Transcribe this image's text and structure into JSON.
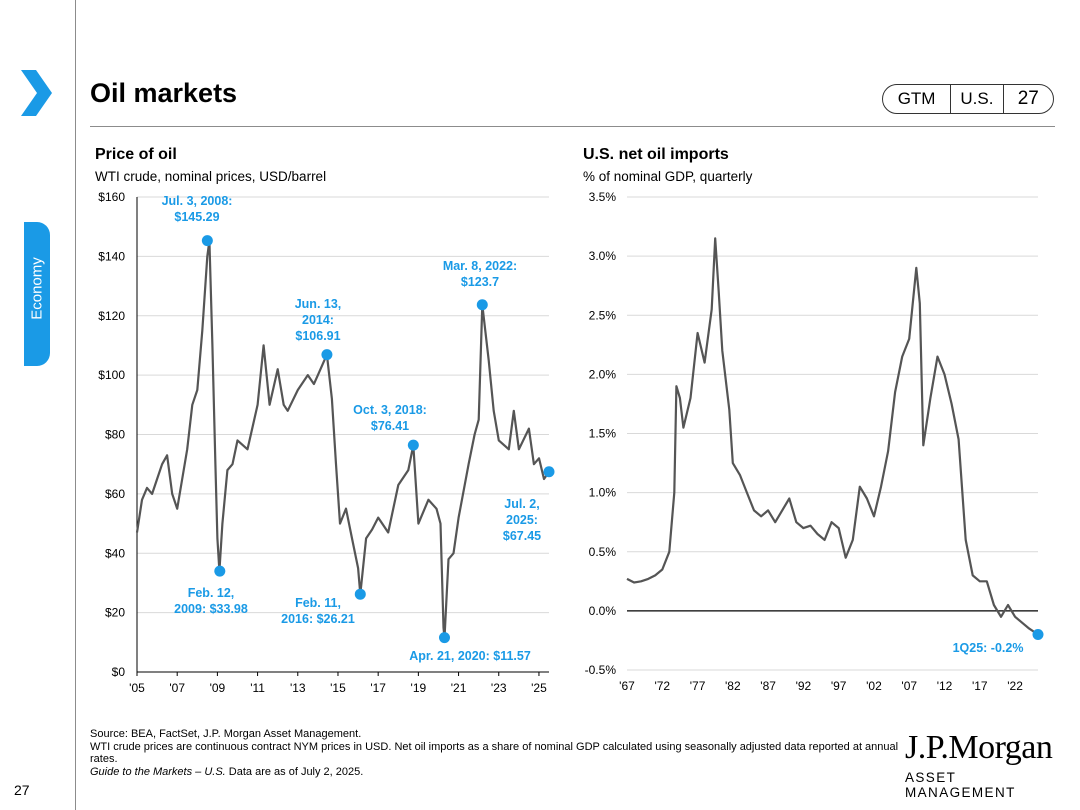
{
  "header": {
    "title": "Oil markets",
    "badge": [
      "GTM",
      "U.S.",
      "27"
    ]
  },
  "sidebar": {
    "label": "Economy",
    "page_number": "27"
  },
  "colors": {
    "accent": "#1a9ae6",
    "line": "#555555",
    "grid": "#d9d9d9"
  },
  "chart_data": [
    {
      "type": "line",
      "title": "Price of oil",
      "subtitle": "WTI crude, nominal prices, USD/barrel",
      "ylim": [
        0,
        160
      ],
      "xlim": [
        2005,
        2025.5
      ],
      "y_ticks": [
        0,
        20,
        40,
        60,
        80,
        100,
        120,
        140,
        160
      ],
      "y_tick_labels": [
        "$0",
        "$20",
        "$40",
        "$60",
        "$80",
        "$100",
        "$120",
        "$140",
        "$160"
      ],
      "x_ticks": [
        2005,
        2007,
        2009,
        2011,
        2013,
        2015,
        2017,
        2019,
        2021,
        2023,
        2025
      ],
      "x_tick_labels": [
        "'05",
        "'07",
        "'09",
        "'11",
        "'13",
        "'15",
        "'17",
        "'19",
        "'21",
        "'23",
        "'25"
      ],
      "series": [
        {
          "name": "WTI crude",
          "x": [
            2005.0,
            2005.25,
            2005.5,
            2005.75,
            2006.0,
            2006.25,
            2006.5,
            2006.75,
            2007.0,
            2007.25,
            2007.5,
            2007.75,
            2008.0,
            2008.25,
            2008.5,
            2008.6,
            2008.75,
            2008.9,
            2009.0,
            2009.1,
            2009.25,
            2009.5,
            2009.75,
            2010.0,
            2010.5,
            2011.0,
            2011.3,
            2011.6,
            2012.0,
            2012.3,
            2012.5,
            2013.0,
            2013.5,
            2013.8,
            2014.0,
            2014.45,
            2014.7,
            2014.9,
            2015.1,
            2015.4,
            2015.7,
            2016.0,
            2016.11,
            2016.4,
            2016.7,
            2017.0,
            2017.5,
            2018.0,
            2018.5,
            2018.75,
            2019.0,
            2019.5,
            2019.9,
            2020.1,
            2020.25,
            2020.3,
            2020.5,
            2020.75,
            2021.0,
            2021.5,
            2021.8,
            2022.0,
            2022.18,
            2022.5,
            2022.75,
            2023.0,
            2023.5,
            2023.75,
            2024.0,
            2024.5,
            2024.75,
            2025.0,
            2025.25,
            2025.5
          ],
          "y": [
            47,
            58,
            62,
            60,
            65,
            70,
            73,
            60,
            55,
            65,
            75,
            90,
            95,
            115,
            140,
            145.29,
            110,
            70,
            45,
            33.98,
            50,
            68,
            70,
            78,
            75,
            90,
            110,
            90,
            102,
            90,
            88,
            95,
            100,
            97,
            100,
            106.91,
            92,
            70,
            50,
            55,
            45,
            35,
            26.21,
            45,
            48,
            52,
            47,
            63,
            68,
            76.41,
            50,
            58,
            55,
            50,
            15,
            11.57,
            38,
            40,
            52,
            70,
            80,
            85,
            123.7,
            105,
            88,
            78,
            75,
            88,
            75,
            82,
            70,
            72,
            65,
            67.45
          ]
        }
      ],
      "annotations": [
        {
          "label": [
            "Jul. 3, 2008:",
            "$145.29"
          ],
          "x": 2008.5,
          "y": 145.29
        },
        {
          "label": [
            "Feb. 12,",
            "2009: $33.98"
          ],
          "x": 2009.12,
          "y": 33.98
        },
        {
          "label": [
            "Jun. 13,",
            "2014:",
            "$106.91"
          ],
          "x": 2014.45,
          "y": 106.91
        },
        {
          "label": [
            "Feb. 11,",
            "2016: $26.21"
          ],
          "x": 2016.11,
          "y": 26.21
        },
        {
          "label": [
            "Oct. 3, 2018:",
            "$76.41"
          ],
          "x": 2018.75,
          "y": 76.41
        },
        {
          "label": [
            "Apr. 21, 2020: $11.57"
          ],
          "x": 2020.3,
          "y": 11.57
        },
        {
          "label": [
            "Mar. 8, 2022:",
            "$123.7"
          ],
          "x": 2022.18,
          "y": 123.7
        },
        {
          "label": [
            "Jul. 2,",
            "2025:",
            "$67.45"
          ],
          "x": 2025.5,
          "y": 67.45
        }
      ]
    },
    {
      "type": "line",
      "title": "U.S. net oil imports",
      "subtitle": "% of nominal GDP, quarterly",
      "ylim": [
        -0.5,
        3.5
      ],
      "xlim": [
        1967,
        2025.25
      ],
      "y_ticks": [
        -0.5,
        0.0,
        0.5,
        1.0,
        1.5,
        2.0,
        2.5,
        3.0,
        3.5
      ],
      "y_tick_labels": [
        "-0.5%",
        "0.0%",
        "0.5%",
        "1.0%",
        "1.5%",
        "2.0%",
        "2.5%",
        "3.0%",
        "3.5%"
      ],
      "x_ticks": [
        1967,
        1972,
        1977,
        1982,
        1987,
        1992,
        1997,
        2002,
        2007,
        2012,
        2017,
        2022
      ],
      "x_tick_labels": [
        "'67",
        "'72",
        "'77",
        "'82",
        "'87",
        "'92",
        "'97",
        "'02",
        "'07",
        "'12",
        "'17",
        "'22"
      ],
      "series": [
        {
          "name": "Net oil imports",
          "x": [
            1967,
            1968,
            1969,
            1970,
            1971,
            1972,
            1973,
            1973.7,
            1974,
            1974.5,
            1975,
            1976,
            1977,
            1978,
            1979,
            1979.5,
            1980,
            1980.5,
            1981,
            1981.5,
            1982,
            1983,
            1984,
            1985,
            1986,
            1987,
            1988,
            1989,
            1990,
            1991,
            1992,
            1993,
            1994,
            1995,
            1996,
            1997,
            1998,
            1999,
            2000,
            2001,
            2002,
            2003,
            2004,
            2005,
            2006,
            2007,
            2008,
            2008.5,
            2009,
            2010,
            2011,
            2012,
            2013,
            2014,
            2015,
            2016,
            2017,
            2018,
            2019,
            2020,
            2021,
            2022,
            2023,
            2024,
            2025.25
          ],
          "y": [
            0.27,
            0.24,
            0.25,
            0.27,
            0.3,
            0.35,
            0.5,
            1.0,
            1.9,
            1.8,
            1.55,
            1.8,
            2.35,
            2.1,
            2.55,
            3.15,
            2.7,
            2.2,
            1.95,
            1.7,
            1.25,
            1.15,
            1.0,
            0.85,
            0.8,
            0.85,
            0.75,
            0.85,
            0.95,
            0.75,
            0.7,
            0.72,
            0.65,
            0.6,
            0.75,
            0.7,
            0.45,
            0.6,
            1.05,
            0.95,
            0.8,
            1.05,
            1.35,
            1.85,
            2.15,
            2.3,
            2.9,
            2.6,
            1.4,
            1.8,
            2.15,
            2.0,
            1.75,
            1.45,
            0.6,
            0.3,
            0.25,
            0.25,
            0.05,
            -0.05,
            0.05,
            -0.05,
            -0.1,
            -0.15,
            -0.2
          ]
        }
      ],
      "annotations": [
        {
          "label": [
            "1Q25: -0.2%"
          ],
          "x": 2025.25,
          "y": -0.2
        }
      ]
    }
  ],
  "footer": {
    "line1": "Source: BEA, FactSet, J.P. Morgan Asset Management.",
    "line2": "WTI crude prices are continuous contract NYM prices in USD.  Net oil imports as a share of nominal GDP calculated using seasonally adjusted data reported at annual rates.",
    "line3_italic": "Guide to the Markets – U.S.",
    "line3_rest": " Data are as of July 2, 2025."
  },
  "logo": {
    "main": "J.P.Morgan",
    "sub": "ASSET MANAGEMENT"
  }
}
